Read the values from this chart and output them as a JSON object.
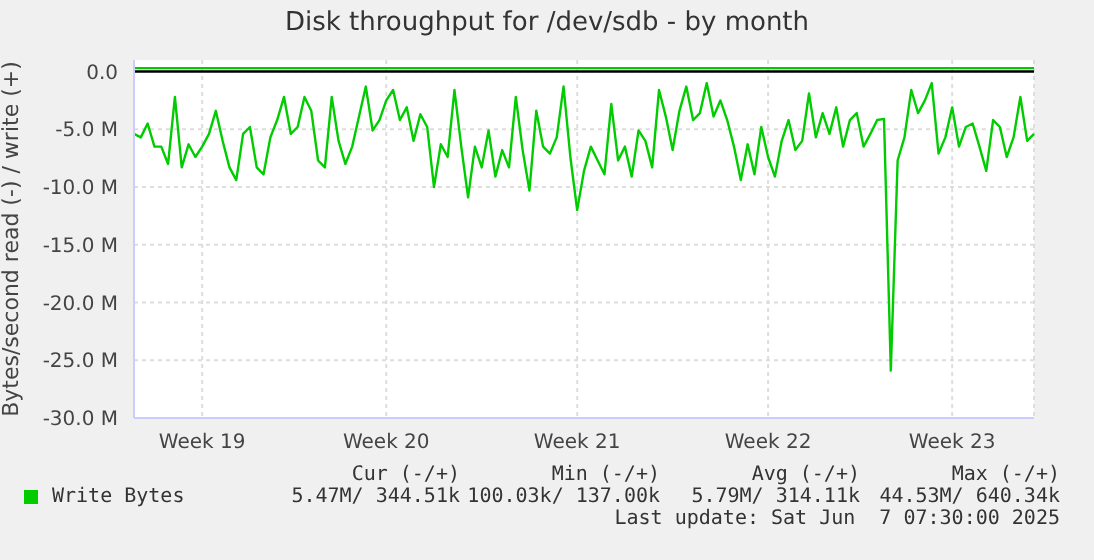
{
  "chart_data": {
    "type": "line",
    "title": "Disk throughput for /dev/sdb - by month",
    "ylabel": "Bytes/second read (-) / write (+)",
    "categories": [
      null,
      null,
      null,
      null,
      null,
      null,
      null,
      null,
      null,
      null,
      "Week 19",
      null,
      null,
      null,
      null,
      null,
      null,
      null,
      null,
      null,
      null,
      null,
      null,
      null,
      null,
      null,
      null,
      null,
      null,
      null,
      null,
      null,
      null,
      null,
      null,
      null,
      null,
      "Week 20",
      null,
      null,
      null,
      null,
      null,
      null,
      null,
      null,
      null,
      null,
      null,
      null,
      null,
      null,
      null,
      null,
      null,
      null,
      null,
      null,
      null,
      null,
      null,
      null,
      null,
      null,
      null,
      "Week 21",
      null,
      null,
      null,
      null,
      null,
      null,
      null,
      null,
      null,
      null,
      null,
      null,
      null,
      null,
      null,
      null,
      null,
      null,
      null,
      null,
      null,
      null,
      null,
      null,
      null,
      null,
      null,
      "Week 22",
      null,
      null,
      null,
      null,
      null,
      null,
      null,
      null,
      null,
      null,
      null,
      null,
      null,
      null,
      null,
      null,
      null,
      null,
      null,
      null,
      null,
      null,
      null,
      null,
      null,
      null,
      "Week 23",
      null,
      null,
      null,
      null,
      null,
      null,
      null,
      null,
      null,
      null,
      null,
      null
    ],
    "ylim": [
      -30,
      1
    ],
    "yticks": [
      {
        "value": -30,
        "label": "-30.0 M"
      },
      {
        "value": -25,
        "label": "-25.0 M"
      },
      {
        "value": -20,
        "label": "-20.0 M"
      },
      {
        "value": -15,
        "label": "-15.0 M"
      },
      {
        "value": -10,
        "label": "-10.0 M"
      },
      {
        "value": -5,
        "label": "-5.0 M"
      },
      {
        "value": 0,
        "label": "0.0"
      }
    ],
    "grid": true,
    "legend": "bottom",
    "marker": "none",
    "line_style": "solid",
    "ref_lines": [
      {
        "axis": "y",
        "value": 0,
        "color": "#000000"
      }
    ],
    "series": [
      {
        "color": "#00cc00",
        "values": [
          -5.4,
          -5.7,
          -4.5,
          -6.5,
          -6.5,
          -8.0,
          -2.2,
          -8.3,
          -6.3,
          -7.4,
          -6.5,
          -5.4,
          -3.4,
          -6.0,
          -8.3,
          -9.4,
          -5.4,
          -4.8,
          -8.3,
          -8.9,
          -5.7,
          -4.2,
          -2.2,
          -5.4,
          -4.8,
          -2.2,
          -3.4,
          -7.7,
          -8.3,
          -2.2,
          -6.0,
          -8.0,
          -6.5,
          -3.9,
          -1.3,
          -5.1,
          -4.2,
          -2.5,
          -1.6,
          -4.2,
          -3.1,
          -6.0,
          -3.7,
          -4.8,
          -10.0,
          -6.3,
          -7.4,
          -1.6,
          -6.5,
          -10.9,
          -6.5,
          -8.3,
          -5.1,
          -9.1,
          -6.8,
          -8.3,
          -2.2,
          -6.8,
          -10.3,
          -3.4,
          -6.5,
          -7.1,
          -5.7,
          -1.3,
          -7.4,
          -12.0,
          -8.6,
          -6.5,
          -7.7,
          -8.9,
          -2.8,
          -7.7,
          -6.5,
          -9.1,
          -5.1,
          -6.0,
          -8.3,
          -1.6,
          -3.9,
          -6.8,
          -3.4,
          -1.3,
          -4.2,
          -3.6,
          -1.0,
          -3.9,
          -2.5,
          -4.2,
          -6.5,
          -9.4,
          -6.3,
          -8.9,
          -4.8,
          -7.4,
          -9.1,
          -6.0,
          -4.2,
          -6.8,
          -6.0,
          -1.9,
          -5.7,
          -3.6,
          -5.4,
          -3.1,
          -6.5,
          -4.2,
          -3.6,
          -6.5,
          -5.4,
          -4.2,
          -4.1,
          -25.9,
          -7.7,
          -5.7,
          -1.6,
          -3.6,
          -2.5,
          -1.0,
          -7.1,
          -5.7,
          -3.1,
          -6.5,
          -4.8,
          -4.5,
          -6.5,
          -8.6,
          -4.2,
          -4.8,
          -7.4,
          -5.7,
          -2.2,
          -6.0,
          -5.4
        ]
      },
      {
        "name": "Write Bytes",
        "color": "#00cc00",
        "values": [
          0.3,
          0.3,
          0.3,
          0.3,
          0.3,
          0.3,
          0.3,
          0.3,
          0.3,
          0.3,
          0.3,
          0.3,
          0.3,
          0.3,
          0.3,
          0.3,
          0.3,
          0.3,
          0.3,
          0.3,
          0.3,
          0.3,
          0.3,
          0.3,
          0.3,
          0.3,
          0.3,
          0.3,
          0.3,
          0.3,
          0.3,
          0.3,
          0.3,
          0.3,
          0.3,
          0.3,
          0.3,
          0.3,
          0.3,
          0.3,
          0.3,
          0.3,
          0.3,
          0.3,
          0.3,
          0.3,
          0.3,
          0.3,
          0.3,
          0.3,
          0.3,
          0.3,
          0.3,
          0.3,
          0.3,
          0.3,
          0.3,
          0.3,
          0.3,
          0.3,
          0.3,
          0.3,
          0.3,
          0.3,
          0.3,
          0.3,
          0.3,
          0.3,
          0.3,
          0.3,
          0.3,
          0.3,
          0.3,
          0.3,
          0.3,
          0.3,
          0.3,
          0.3,
          0.3,
          0.3,
          0.3,
          0.3,
          0.3,
          0.3,
          0.3,
          0.3,
          0.3,
          0.3,
          0.3,
          0.3,
          0.3,
          0.3,
          0.3,
          0.3,
          0.3,
          0.3,
          0.3,
          0.3,
          0.3,
          0.3,
          0.3,
          0.3,
          0.3,
          0.3,
          0.3,
          0.3,
          0.3,
          0.3,
          0.3,
          0.3,
          0.3,
          0.3,
          0.3,
          0.3,
          0.3,
          0.3,
          0.3,
          0.3,
          0.3,
          0.3,
          0.3,
          0.3,
          0.3,
          0.3,
          0.3,
          0.3,
          0.3,
          0.3,
          0.3,
          0.3,
          0.3,
          0.3,
          0.3
        ]
      }
    ],
    "annotations": [
      "Cur (-/+)",
      "Min (-/+)",
      "Avg (-/+)",
      "Max (-/+)",
      "5.47M/ 344.51k",
      "100.03k/ 137.00k",
      "5.79M/ 314.11k",
      "44.53M/ 640.34k",
      "Last update: Sat Jun  7 07:30:00 2025"
    ]
  }
}
